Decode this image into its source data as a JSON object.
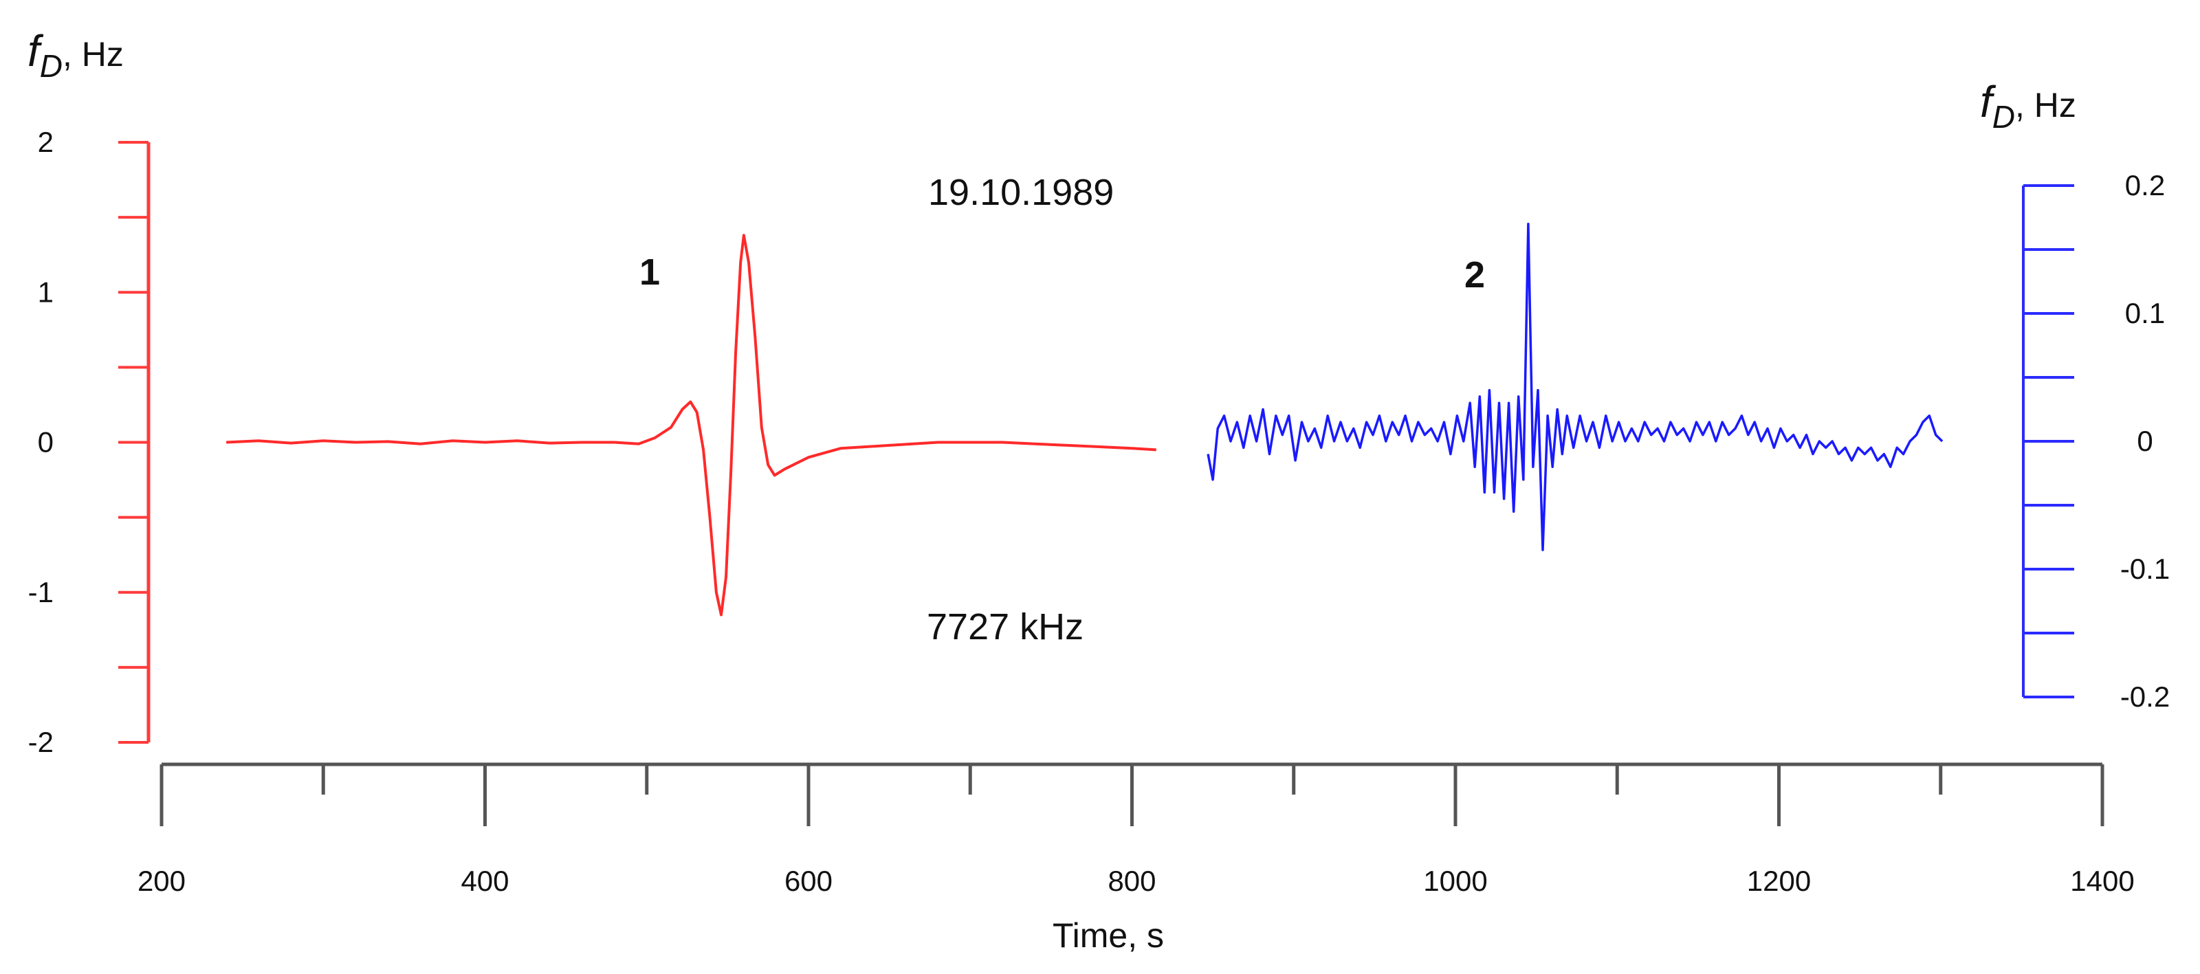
{
  "chart_data": {
    "type": "line",
    "xlabel": "Time, s",
    "xlim": [
      200,
      1400
    ],
    "x_ticks": [
      200,
      400,
      600,
      800,
      1000,
      1200,
      1400
    ],
    "x_minor_step": 100,
    "annotations": {
      "date": "19.10.1989",
      "frequency": "7727 kHz"
    },
    "left_axis": {
      "label_main": "f",
      "label_sub": "D",
      "label_unit": ", Hz",
      "ylim": [
        -2,
        2
      ],
      "ticks": [
        -2,
        -1,
        0,
        1,
        2
      ],
      "tick_labels": [
        "-2",
        "-1",
        "0",
        "1",
        "2"
      ],
      "color": "#ff3b3b"
    },
    "right_axis": {
      "label_main": "f",
      "label_sub": "D",
      "label_unit": ", Hz",
      "ylim": [
        -0.2,
        0.2
      ],
      "ticks": [
        -0.2,
        -0.1,
        0,
        0.1,
        0.2
      ],
      "tick_labels": [
        "-0.2",
        "-0.1",
        "0",
        "0.1",
        "0.2"
      ],
      "color": "#2b2bff"
    },
    "series": [
      {
        "name": "1",
        "axis": "left",
        "color": "#ff2a2a",
        "points": [
          [
            240,
            0.0
          ],
          [
            260,
            0.01
          ],
          [
            280,
            -0.005
          ],
          [
            300,
            0.01
          ],
          [
            320,
            0.0
          ],
          [
            340,
            0.005
          ],
          [
            360,
            -0.01
          ],
          [
            380,
            0.01
          ],
          [
            400,
            0.0
          ],
          [
            420,
            0.01
          ],
          [
            440,
            -0.005
          ],
          [
            460,
            0.0
          ],
          [
            480,
            0.0
          ],
          [
            495,
            -0.01
          ],
          [
            505,
            0.03
          ],
          [
            515,
            0.1
          ],
          [
            522,
            0.22
          ],
          [
            527,
            0.27
          ],
          [
            531,
            0.2
          ],
          [
            535,
            -0.05
          ],
          [
            539,
            -0.5
          ],
          [
            543,
            -1.0
          ],
          [
            546,
            -1.15
          ],
          [
            549,
            -0.9
          ],
          [
            552,
            -0.2
          ],
          [
            555,
            0.6
          ],
          [
            558,
            1.2
          ],
          [
            560,
            1.38
          ],
          [
            563,
            1.2
          ],
          [
            567,
            0.7
          ],
          [
            571,
            0.1
          ],
          [
            575,
            -0.15
          ],
          [
            579,
            -0.22
          ],
          [
            585,
            -0.18
          ],
          [
            600,
            -0.1
          ],
          [
            620,
            -0.04
          ],
          [
            650,
            -0.02
          ],
          [
            680,
            0.0
          ],
          [
            700,
            0.0
          ],
          [
            720,
            0.0
          ],
          [
            740,
            -0.01
          ],
          [
            760,
            -0.02
          ],
          [
            780,
            -0.03
          ],
          [
            800,
            -0.04
          ],
          [
            815,
            -0.05
          ]
        ]
      },
      {
        "name": "2",
        "axis": "right",
        "color": "#1a1aff",
        "points": [
          [
            847,
            -0.01
          ],
          [
            850,
            -0.03
          ],
          [
            853,
            0.01
          ],
          [
            857,
            0.02
          ],
          [
            861,
            0.0
          ],
          [
            865,
            0.015
          ],
          [
            869,
            -0.005
          ],
          [
            873,
            0.02
          ],
          [
            877,
            0.0
          ],
          [
            881,
            0.025
          ],
          [
            885,
            -0.01
          ],
          [
            889,
            0.02
          ],
          [
            893,
            0.005
          ],
          [
            897,
            0.02
          ],
          [
            901,
            -0.015
          ],
          [
            905,
            0.015
          ],
          [
            909,
            0.0
          ],
          [
            913,
            0.01
          ],
          [
            917,
            -0.005
          ],
          [
            921,
            0.02
          ],
          [
            925,
            0.0
          ],
          [
            929,
            0.015
          ],
          [
            933,
            0.0
          ],
          [
            937,
            0.01
          ],
          [
            941,
            -0.005
          ],
          [
            945,
            0.015
          ],
          [
            949,
            0.005
          ],
          [
            953,
            0.02
          ],
          [
            957,
            0.0
          ],
          [
            961,
            0.015
          ],
          [
            965,
            0.005
          ],
          [
            969,
            0.02
          ],
          [
            973,
            0.0
          ],
          [
            977,
            0.015
          ],
          [
            981,
            0.005
          ],
          [
            985,
            0.01
          ],
          [
            989,
            0.0
          ],
          [
            993,
            0.015
          ],
          [
            997,
            -0.01
          ],
          [
            1001,
            0.02
          ],
          [
            1005,
            0.0
          ],
          [
            1009,
            0.03
          ],
          [
            1012,
            -0.02
          ],
          [
            1015,
            0.035
          ],
          [
            1018,
            -0.04
          ],
          [
            1021,
            0.04
          ],
          [
            1024,
            -0.04
          ],
          [
            1027,
            0.03
          ],
          [
            1030,
            -0.045
          ],
          [
            1033,
            0.03
          ],
          [
            1036,
            -0.055
          ],
          [
            1039,
            0.035
          ],
          [
            1042,
            -0.03
          ],
          [
            1045,
            0.17
          ],
          [
            1048,
            -0.02
          ],
          [
            1051,
            0.04
          ],
          [
            1054,
            -0.085
          ],
          [
            1057,
            0.02
          ],
          [
            1060,
            -0.02
          ],
          [
            1063,
            0.025
          ],
          [
            1066,
            -0.01
          ],
          [
            1069,
            0.02
          ],
          [
            1073,
            -0.005
          ],
          [
            1077,
            0.02
          ],
          [
            1081,
            0.0
          ],
          [
            1085,
            0.015
          ],
          [
            1089,
            -0.005
          ],
          [
            1093,
            0.02
          ],
          [
            1097,
            0.0
          ],
          [
            1101,
            0.015
          ],
          [
            1105,
            0.0
          ],
          [
            1109,
            0.01
          ],
          [
            1113,
            0.0
          ],
          [
            1117,
            0.015
          ],
          [
            1121,
            0.005
          ],
          [
            1125,
            0.01
          ],
          [
            1129,
            0.0
          ],
          [
            1133,
            0.015
          ],
          [
            1137,
            0.005
          ],
          [
            1141,
            0.01
          ],
          [
            1145,
            0.0
          ],
          [
            1149,
            0.015
          ],
          [
            1153,
            0.005
          ],
          [
            1157,
            0.015
          ],
          [
            1161,
            0.0
          ],
          [
            1165,
            0.015
          ],
          [
            1169,
            0.005
          ],
          [
            1173,
            0.01
          ],
          [
            1177,
            0.02
          ],
          [
            1181,
            0.005
          ],
          [
            1185,
            0.015
          ],
          [
            1189,
            0.0
          ],
          [
            1193,
            0.01
          ],
          [
            1197,
            -0.005
          ],
          [
            1201,
            0.01
          ],
          [
            1205,
            0.0
          ],
          [
            1209,
            0.005
          ],
          [
            1213,
            -0.005
          ],
          [
            1217,
            0.005
          ],
          [
            1221,
            -0.01
          ],
          [
            1225,
            0.0
          ],
          [
            1229,
            -0.005
          ],
          [
            1233,
            0.0
          ],
          [
            1237,
            -0.01
          ],
          [
            1241,
            -0.005
          ],
          [
            1245,
            -0.015
          ],
          [
            1249,
            -0.005
          ],
          [
            1253,
            -0.01
          ],
          [
            1257,
            -0.005
          ],
          [
            1261,
            -0.015
          ],
          [
            1265,
            -0.01
          ],
          [
            1269,
            -0.02
          ],
          [
            1273,
            -0.005
          ],
          [
            1277,
            -0.01
          ],
          [
            1281,
            0.0
          ],
          [
            1285,
            0.005
          ],
          [
            1289,
            0.015
          ],
          [
            1293,
            0.02
          ],
          [
            1297,
            0.005
          ],
          [
            1301,
            0.0
          ]
        ]
      }
    ]
  }
}
